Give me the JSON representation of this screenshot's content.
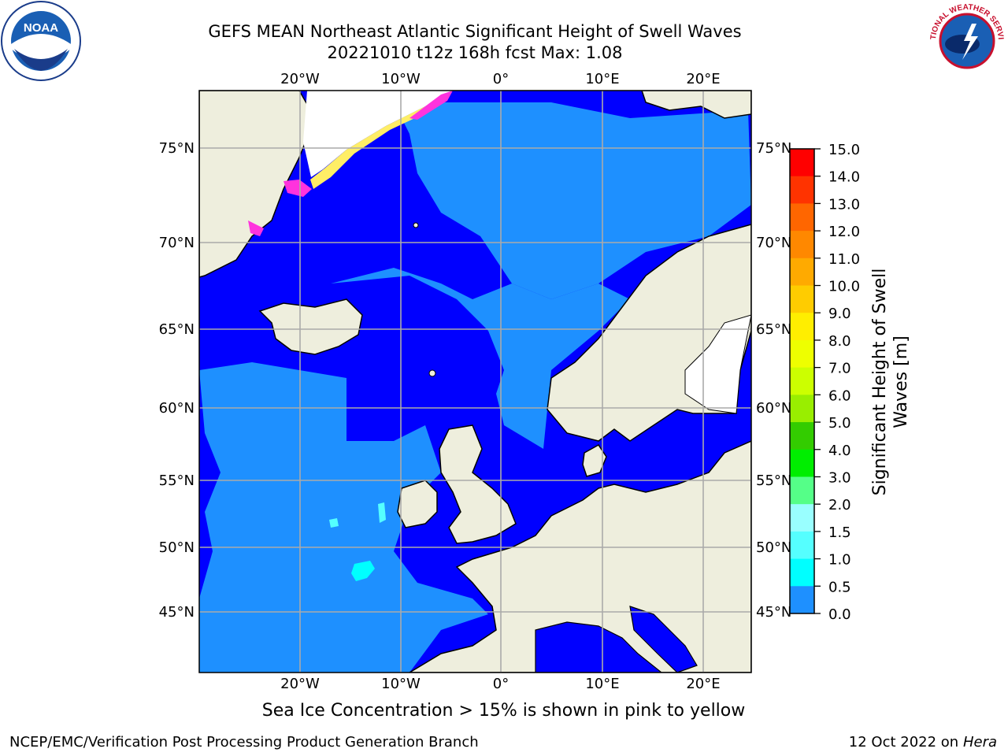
{
  "header": {
    "title_line1": "GEFS MEAN Northeast Atlantic Significant Height of Swell Waves",
    "title_line2": "20221010 t12z 168h fcst   Max: 1.08"
  },
  "logos": {
    "left": {
      "icon": "noaa-logo",
      "text": "NOAA"
    },
    "right": {
      "icon": "nws-logo",
      "text": "NATIONAL WEATHER SERVICE"
    }
  },
  "map": {
    "lon_labels": [
      "20°W",
      "10°W",
      "0°",
      "10°E",
      "20°E"
    ],
    "lat_labels": [
      "75°N",
      "70°N",
      "65°N",
      "60°N",
      "55°N",
      "50°N",
      "45°N"
    ],
    "colors": {
      "ocean_low": "#0000ff",
      "ocean_mid": "#1e90ff",
      "land": "#eeeedd",
      "ice_pink": "#ff33dd",
      "ice_orange": "#ffb347",
      "ice_yellow": "#ffee66",
      "grid": "#aaaaaa"
    }
  },
  "colorbar": {
    "label_line1": "Significant Height of Swell",
    "label_line2": "Waves [m]",
    "ticks": [
      "15.0",
      "14.0",
      "13.0",
      "12.0",
      "11.0",
      "10.0",
      "9.0",
      "8.0",
      "7.0",
      "6.0",
      "5.0",
      "4.0",
      "3.0",
      "2.0",
      "1.5",
      "1.0",
      "0.5",
      "0.0"
    ],
    "colors": [
      "#ff0000",
      "#ff3300",
      "#ff6600",
      "#ff8800",
      "#ffaa00",
      "#ffcc00",
      "#ffee00",
      "#eeff00",
      "#ccff00",
      "#99ee00",
      "#33cc00",
      "#00ee00",
      "#55ff88",
      "#99ffff",
      "#55ffff",
      "#00ffff",
      "#1e90ff",
      "#0000ff"
    ]
  },
  "note": "Sea Ice Concentration > 15% is shown in pink to yellow",
  "footer": {
    "left": "NCEP/EMC/Verification Post Processing Product Generation Branch",
    "right_prefix": "12 Oct 2022 on ",
    "right_emph": "Hera"
  }
}
